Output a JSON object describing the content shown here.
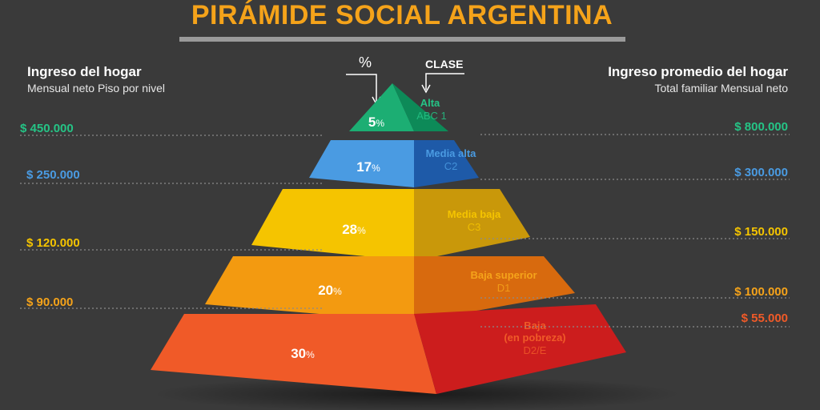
{
  "title": "PIRÁMIDE SOCIAL ARGENTINA",
  "left_header": {
    "title": "Ingreso del hogar",
    "subtitle": "Mensual neto  Piso por nivel"
  },
  "right_header": {
    "title": "Ingreso promedio del hogar",
    "subtitle": "Total familiar Mensual neto"
  },
  "percent_label": "%",
  "class_label": "CLASE",
  "colors": {
    "background": "#3a3a3a",
    "title": "#f5a31a",
    "rule": "#9a9a9a"
  },
  "chart_data": {
    "type": "pyramid",
    "levels": [
      {
        "pct": "5",
        "pct_unit": "%",
        "name": "Alta",
        "code": "ABC 1",
        "floor_income": "$ 450.000",
        "avg_income": "$ 800.000",
        "colors": {
          "front": "#1cae73",
          "side": "#0d8a58",
          "label": "#25c486"
        }
      },
      {
        "pct": "17",
        "pct_unit": "%",
        "name": "Media alta",
        "code": "C2",
        "floor_income": "$ 250.000",
        "avg_income": "$ 300.000",
        "colors": {
          "front": "#4a9be2",
          "side": "#1e5aa8",
          "label": "#4a9be2"
        }
      },
      {
        "pct": "28",
        "pct_unit": "%",
        "name": "Media baja",
        "code": "C3",
        "floor_income": "$ 120.000",
        "avg_income": "$ 150.000",
        "colors": {
          "front": "#f5c400",
          "side": "#c9980a",
          "label": "#f5c400"
        }
      },
      {
        "pct": "20",
        "pct_unit": "%",
        "name": "Baja superior",
        "code": "D1",
        "floor_income": "$ 90.000",
        "avg_income": "$ 100.000",
        "colors": {
          "front": "#f39a10",
          "side": "#d86a0e",
          "label": "#f5a31a"
        }
      },
      {
        "pct": "30",
        "pct_unit": "%",
        "name": "Baja\n(en pobreza)",
        "code": "D2/E",
        "floor_income": null,
        "avg_income": "$ 55.000",
        "colors": {
          "front": "#f05a28",
          "side": "#cc1d1d",
          "label": "#f05a28"
        }
      }
    ]
  }
}
